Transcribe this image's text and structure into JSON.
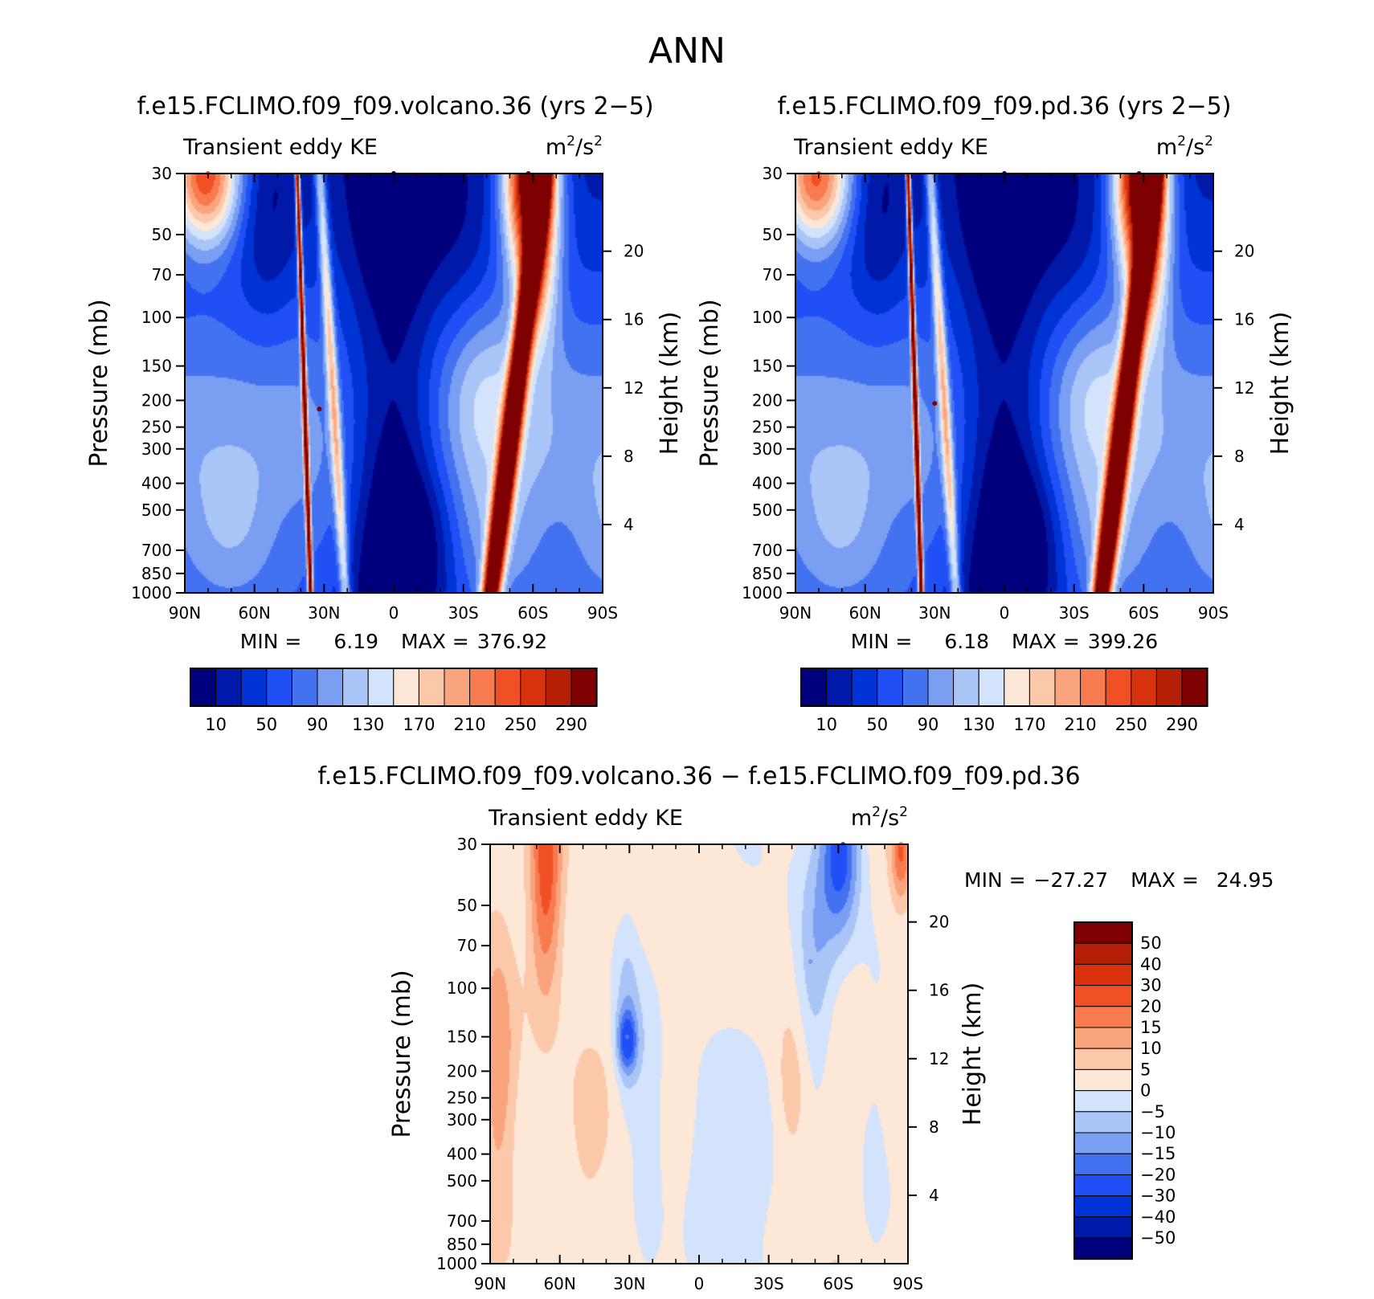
{
  "figure": {
    "title": "ANN"
  },
  "chart_data": [
    {
      "type": "heatmap",
      "title": "f.e15.FCLIMO.f09_f09.volcano.36 (yrs 2−5)",
      "left_label": "Transient eddy KE",
      "units_base": "m",
      "units_exp": "2",
      "units_tail": "/s",
      "units_tail_exp": "2",
      "ylabel": "Pressure (mb)",
      "ylabel_right": "Height (km)",
      "x_ticks": [
        "90N",
        "60N",
        "30N",
        "0",
        "30S",
        "60S",
        "90S"
      ],
      "y_ticks": [
        "30",
        "50",
        "70",
        "100",
        "150",
        "200",
        "250",
        "300",
        "400",
        "500",
        "700",
        "850",
        "1000"
      ],
      "height_ticks": [
        "20",
        "16",
        "12",
        "8",
        "4"
      ],
      "min_label": "MIN =",
      "min_value": "6.19",
      "max_label": "MAX =",
      "max_value": "376.92",
      "min_num": 6.19,
      "max_num": 376.92,
      "levels": [
        10,
        30,
        50,
        70,
        90,
        110,
        130,
        150,
        170,
        190,
        210,
        230,
        250,
        270,
        290
      ],
      "level_labels": [
        "10",
        "50",
        "90",
        "130",
        "170",
        "210",
        "250",
        "290"
      ],
      "colors": [
        "#00007f",
        "#0019a8",
        "#0033d6",
        "#1f4ff5",
        "#4272f0",
        "#7a9ff2",
        "#a9c4f7",
        "#d3e3fb",
        "#fde7d6",
        "#fcc8aa",
        "#f9a47d",
        "#f77b4f",
        "#f05024",
        "#d9330e",
        "#b41f06",
        "#7f0000"
      ],
      "features": [
        {
          "kind": "max",
          "lat": -52,
          "p": 290,
          "value": 377
        },
        {
          "kind": "max",
          "lat": 32,
          "p": 215,
          "value": 300
        },
        {
          "kind": "max",
          "lat": -58,
          "p": 30,
          "value": 320
        },
        {
          "kind": "max",
          "lat": 80,
          "p": 30,
          "value": 230
        },
        {
          "kind": "min",
          "lat": 0,
          "p": 30,
          "value": 6
        },
        {
          "kind": "min",
          "lat": 0,
          "p": 850,
          "value": 8
        }
      ]
    },
    {
      "type": "heatmap",
      "title": "f.e15.FCLIMO.f09_f09.pd.36 (yrs 2−5)",
      "left_label": "Transient eddy KE",
      "units_base": "m",
      "units_exp": "2",
      "units_tail": "/s",
      "units_tail_exp": "2",
      "ylabel": "Pressure (mb)",
      "ylabel_right": "Height (km)",
      "x_ticks": [
        "90N",
        "60N",
        "30N",
        "0",
        "30S",
        "60S",
        "90S"
      ],
      "y_ticks": [
        "30",
        "50",
        "70",
        "100",
        "150",
        "200",
        "250",
        "300",
        "400",
        "500",
        "700",
        "850",
        "1000"
      ],
      "height_ticks": [
        "20",
        "16",
        "12",
        "8",
        "4"
      ],
      "min_label": "MIN =",
      "min_value": "6.18",
      "max_label": "MAX =",
      "max_value": "399.26",
      "min_num": 6.18,
      "max_num": 399.26,
      "levels": [
        10,
        30,
        50,
        70,
        90,
        110,
        130,
        150,
        170,
        190,
        210,
        230,
        250,
        270,
        290
      ],
      "level_labels": [
        "10",
        "50",
        "90",
        "130",
        "170",
        "210",
        "250",
        "290"
      ],
      "colors": [
        "#00007f",
        "#0019a8",
        "#0033d6",
        "#1f4ff5",
        "#4272f0",
        "#7a9ff2",
        "#a9c4f7",
        "#d3e3fb",
        "#fde7d6",
        "#fcc8aa",
        "#f9a47d",
        "#f77b4f",
        "#f05024",
        "#d9330e",
        "#b41f06",
        "#7f0000"
      ],
      "features": [
        {
          "kind": "max",
          "lat": -52,
          "p": 290,
          "value": 399
        },
        {
          "kind": "max",
          "lat": 30,
          "p": 205,
          "value": 310
        },
        {
          "kind": "max",
          "lat": -58,
          "p": 30,
          "value": 330
        },
        {
          "kind": "max",
          "lat": 80,
          "p": 30,
          "value": 220
        },
        {
          "kind": "min",
          "lat": 0,
          "p": 30,
          "value": 6
        },
        {
          "kind": "min",
          "lat": 0,
          "p": 850,
          "value": 8
        }
      ]
    },
    {
      "type": "heatmap",
      "title": "f.e15.FCLIMO.f09_f09.volcano.36 − f.e15.FCLIMO.f09_f09.pd.36",
      "left_label": "Transient eddy KE",
      "units_base": "m",
      "units_exp": "2",
      "units_tail": "/s",
      "units_tail_exp": "2",
      "ylabel": "Pressure (mb)",
      "ylabel_right": "Height (km)",
      "x_ticks": [
        "90N",
        "60N",
        "30N",
        "0",
        "30S",
        "60S",
        "90S"
      ],
      "y_ticks": [
        "30",
        "50",
        "70",
        "100",
        "150",
        "200",
        "250",
        "300",
        "400",
        "500",
        "700",
        "850",
        "1000"
      ],
      "height_ticks": [
        "20",
        "16",
        "12",
        "8",
        "4"
      ],
      "min_label": "MIN =",
      "min_value": "−27.27",
      "max_label": "MAX =",
      "max_value": "24.95",
      "min_num": -27.27,
      "max_num": 24.95,
      "levels": [
        -50,
        -40,
        -30,
        -20,
        -15,
        -10,
        -5,
        0,
        5,
        10,
        15,
        20,
        30,
        40,
        50
      ],
      "level_labels": [
        "50",
        "40",
        "30",
        "20",
        "15",
        "10",
        "5",
        "0",
        "−5",
        "−10",
        "−15",
        "−20",
        "−30",
        "−40",
        "−50"
      ],
      "colors": [
        "#00007f",
        "#0019a8",
        "#0033d6",
        "#1f4ff5",
        "#4272f0",
        "#7a9ff2",
        "#a9c4f7",
        "#d3e3fb",
        "#fde7d6",
        "#fcc8aa",
        "#f9a47d",
        "#f77b4f",
        "#f05024",
        "#d9330e",
        "#b41f06",
        "#7f0000"
      ],
      "features": [
        {
          "kind": "max",
          "lat": 67,
          "p": 35,
          "value": 25
        },
        {
          "kind": "max",
          "lat": 88,
          "p": 230,
          "value": 12
        },
        {
          "kind": "max",
          "lat": -40,
          "p": 230,
          "value": 9
        },
        {
          "kind": "max",
          "lat": -87,
          "p": 30,
          "value": 18
        },
        {
          "kind": "min",
          "lat": -62,
          "p": 30,
          "value": -27
        },
        {
          "kind": "min",
          "lat": 31,
          "p": 150,
          "value": -20
        },
        {
          "kind": "min",
          "lat": -48,
          "p": 80,
          "value": -12
        }
      ]
    }
  ]
}
